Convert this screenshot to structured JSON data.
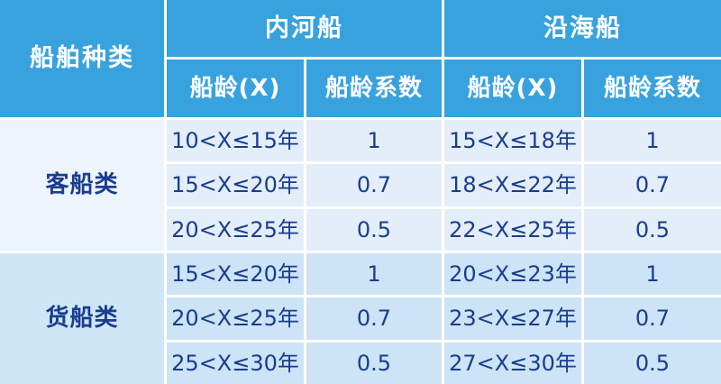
{
  "table": {
    "corner_header": "船舶种类",
    "group_headers": [
      "内河船",
      "沿海船"
    ],
    "sub_headers": [
      "船龄(X)",
      "船龄系数",
      "船龄(X)",
      "船龄系数"
    ],
    "sections": [
      {
        "category": "客船类",
        "rows": [
          [
            "10<X≤15年",
            "1",
            "15<X≤18年",
            "1"
          ],
          [
            "15<X≤20年",
            "0.7",
            "18<X≤22年",
            "0.7"
          ],
          [
            "20<X≤25年",
            "0.5",
            "22<X≤25年",
            "0.5"
          ]
        ]
      },
      {
        "category": "货船类",
        "rows": [
          [
            "15<X≤20年",
            "1",
            "20<X≤23年",
            "1"
          ],
          [
            "20<X≤25年",
            "0.7",
            "23<X≤27年",
            "0.7"
          ],
          [
            "25<X≤30年",
            "0.5",
            "27<X≤30年",
            "0.5"
          ]
        ]
      }
    ]
  },
  "colors": {
    "header_bg": "#38a2de",
    "header_text": "#ffffff",
    "body_text": "#1a3d8f",
    "passenger_category_bg": "#edf4fc",
    "passenger_cell_bg": "#e4eef9",
    "cargo_category_bg": "#cfe6f6",
    "cargo_cell_bg": "#cce4f5",
    "grid_line": "#ffffff"
  },
  "chart_data": {
    "type": "table",
    "title": "船舶种类 / 船龄 / 船龄系数",
    "columns": [
      "船舶种类",
      "内河船 船龄(X)",
      "内河船 船龄系数",
      "沿海船 船龄(X)",
      "沿海船 船龄系数"
    ],
    "rows": [
      [
        "客船类",
        "10<X≤15年",
        1,
        "15<X≤18年",
        1
      ],
      [
        "客船类",
        "15<X≤20年",
        0.7,
        "18<X≤22年",
        0.7
      ],
      [
        "客船类",
        "20<X≤25年",
        0.5,
        "22<X≤25年",
        0.5
      ],
      [
        "货船类",
        "15<X≤20年",
        1,
        "20<X≤23年",
        1
      ],
      [
        "货船类",
        "20<X≤25年",
        0.7,
        "23<X≤27年",
        0.7
      ],
      [
        "货船类",
        "25<X≤30年",
        0.5,
        "27<X≤30年",
        0.5
      ]
    ],
    "notes": "蓝色表头，客船类区块浅蓝白底，货船类区块浅蓝底，深蓝色正文"
  }
}
